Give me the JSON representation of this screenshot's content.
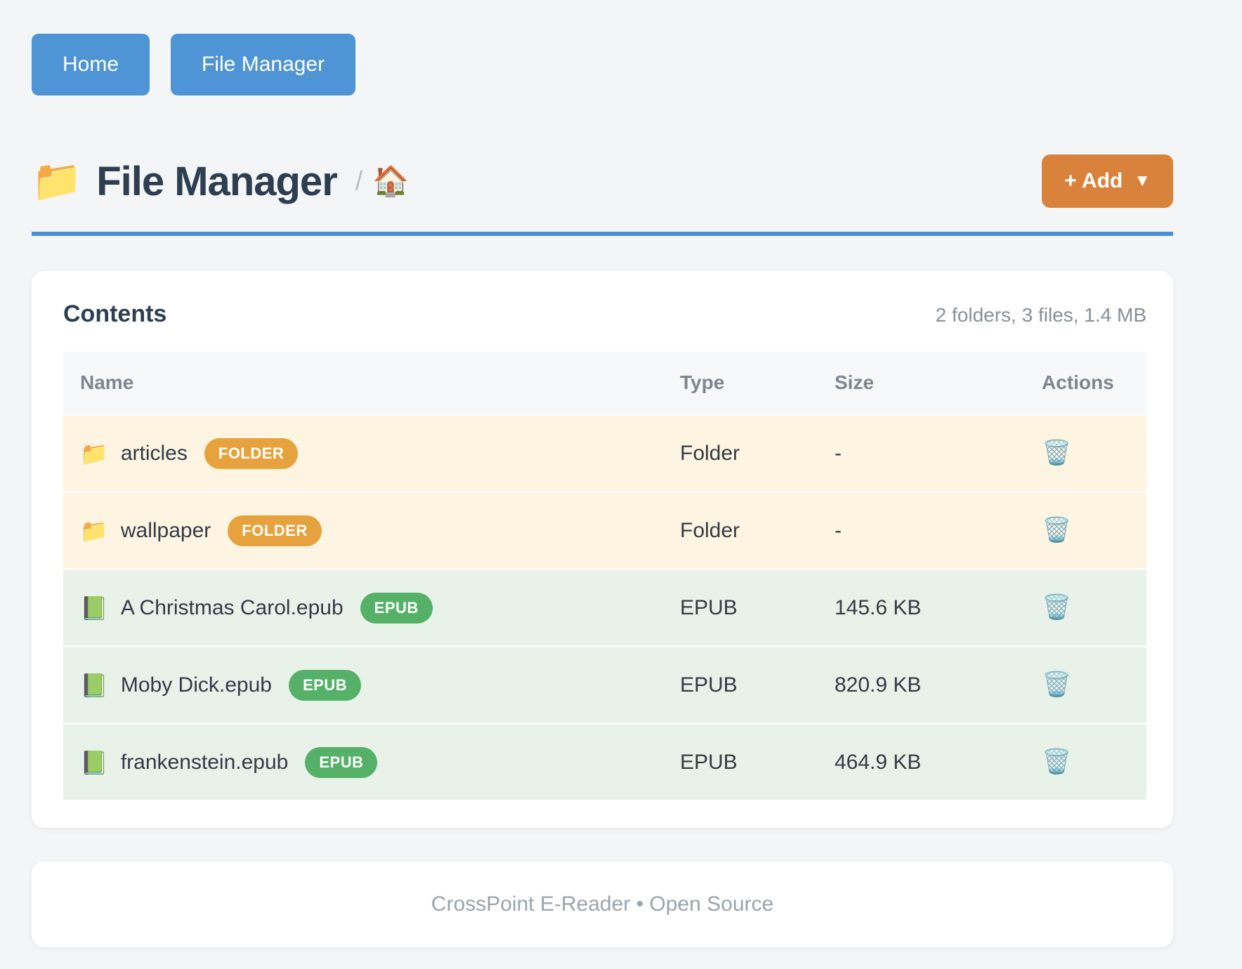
{
  "nav": {
    "home_label": "Home",
    "file_manager_label": "File Manager"
  },
  "header": {
    "folder_icon": "📁",
    "title": "File Manager",
    "breadcrumb_separator": "/",
    "home_icon": "🏠",
    "add_button_label": "+ Add",
    "add_button_caret": "▼"
  },
  "contents": {
    "title": "Contents",
    "summary": "2 folders, 3 files, 1.4 MB",
    "columns": [
      "Name",
      "Type",
      "Size",
      "Actions"
    ],
    "rows": [
      {
        "kind": "folder",
        "icon": "📁",
        "name": "articles",
        "badge": "FOLDER",
        "type": "Folder",
        "size": "-",
        "delete_icon": "🗑️"
      },
      {
        "kind": "folder",
        "icon": "📁",
        "name": "wallpaper",
        "badge": "FOLDER",
        "type": "Folder",
        "size": "-",
        "delete_icon": "🗑️"
      },
      {
        "kind": "epub",
        "icon": "📗",
        "name": "A Christmas Carol.epub",
        "badge": "EPUB",
        "type": "EPUB",
        "size": "145.6 KB",
        "delete_icon": "🗑️"
      },
      {
        "kind": "epub",
        "icon": "📗",
        "name": "Moby Dick.epub",
        "badge": "EPUB",
        "type": "EPUB",
        "size": "820.9 KB",
        "delete_icon": "🗑️"
      },
      {
        "kind": "epub",
        "icon": "📗",
        "name": "frankenstein.epub",
        "badge": "EPUB",
        "type": "EPUB",
        "size": "464.9 KB",
        "delete_icon": "🗑️"
      }
    ]
  },
  "footer": {
    "text": "CrossPoint E-Reader • Open Source"
  },
  "colors": {
    "nav_button_blue": "#4f94d5",
    "accent_rule_blue": "#4a90d9",
    "add_button_orange": "#d9823c",
    "folder_badge_orange": "#e6a23c",
    "epub_badge_green": "#55b168",
    "folder_row_bg": "#fdf5e2",
    "epub_row_bg": "#e8f2e9",
    "title_text": "#2d3e50",
    "page_bg": "#f4f5f6"
  }
}
